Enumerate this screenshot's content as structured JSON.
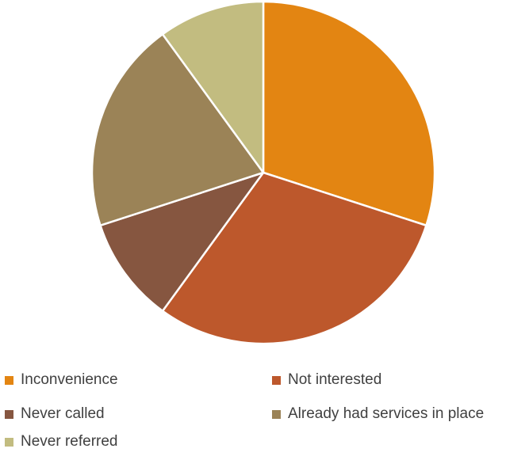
{
  "chart_data": {
    "type": "pie",
    "title": "",
    "slices": [
      {
        "label": "Inconvenience",
        "value": 30,
        "color": "#E38512"
      },
      {
        "label": "Not interested",
        "value": 30,
        "color": "#BD582C"
      },
      {
        "label": "Never called",
        "value": 10,
        "color": "#865640"
      },
      {
        "label": "Already had services in place",
        "value": 20,
        "color": "#9B8357"
      },
      {
        "label": "Never referred",
        "value": 10,
        "color": "#C2BC80"
      }
    ],
    "start_angle_deg": 0,
    "direction": "clockwise",
    "legend_position": "bottom",
    "slice_border_color": "#ffffff"
  }
}
